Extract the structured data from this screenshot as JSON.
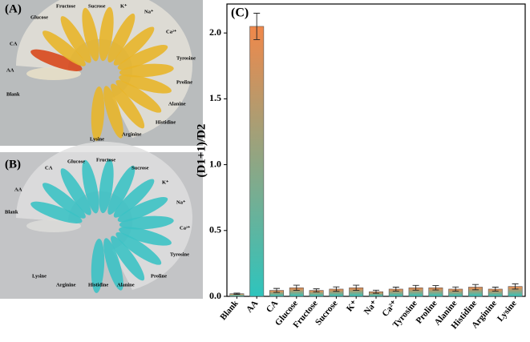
{
  "photo_a": {
    "label": "(A)",
    "tube_labels": [
      "Blank",
      "AA",
      "CA",
      "Glucose",
      "Fructose",
      "Sucrose",
      "K⁺",
      "Na⁺",
      "Ca²⁺",
      "Tyrosine",
      "Proline",
      "Alanine",
      "Histidine",
      "Arginine",
      "Lysine"
    ]
  },
  "photo_b": {
    "label": "(B)",
    "tube_labels": [
      "Blank",
      "AA",
      "CA",
      "Glucose",
      "Fructose",
      "Sucrose",
      "K⁺",
      "Na⁺",
      "Ca²⁺",
      "Tyrosine",
      "Proline",
      "Alanine",
      "Histidine",
      "Arginine",
      "Lysine"
    ]
  },
  "chart_data": {
    "type": "bar",
    "panel_label": "(C)",
    "y_label": "(D1+1)/D2",
    "categories": [
      "Blank",
      "AA",
      "CA",
      "Glucose",
      "Fructose",
      "Sucrose",
      "K⁺",
      "Na⁺",
      "Ca²⁺",
      "Tyrosine",
      "Proline",
      "Alanine",
      "Histidine",
      "Arginine",
      "Lysine"
    ],
    "values": [
      0.02,
      2.05,
      0.045,
      0.065,
      0.045,
      0.055,
      0.065,
      0.035,
      0.055,
      0.065,
      0.065,
      0.055,
      0.07,
      0.055,
      0.075
    ],
    "errors": [
      0.005,
      0.1,
      0.015,
      0.02,
      0.012,
      0.017,
      0.02,
      0.012,
      0.015,
      0.018,
      0.017,
      0.016,
      0.02,
      0.015,
      0.02
    ],
    "colors": [
      "#2ec4bd",
      "#f0884a"
    ],
    "ylim": [
      0,
      2.22
    ],
    "yticks": [
      {
        "value": 0,
        "label": "0.0"
      },
      {
        "value": 0.5,
        "label": "0.5"
      },
      {
        "value": 1,
        "label": "1.0"
      },
      {
        "value": 1.5,
        "label": "1.5"
      },
      {
        "value": 2,
        "label": "2.0"
      }
    ]
  }
}
